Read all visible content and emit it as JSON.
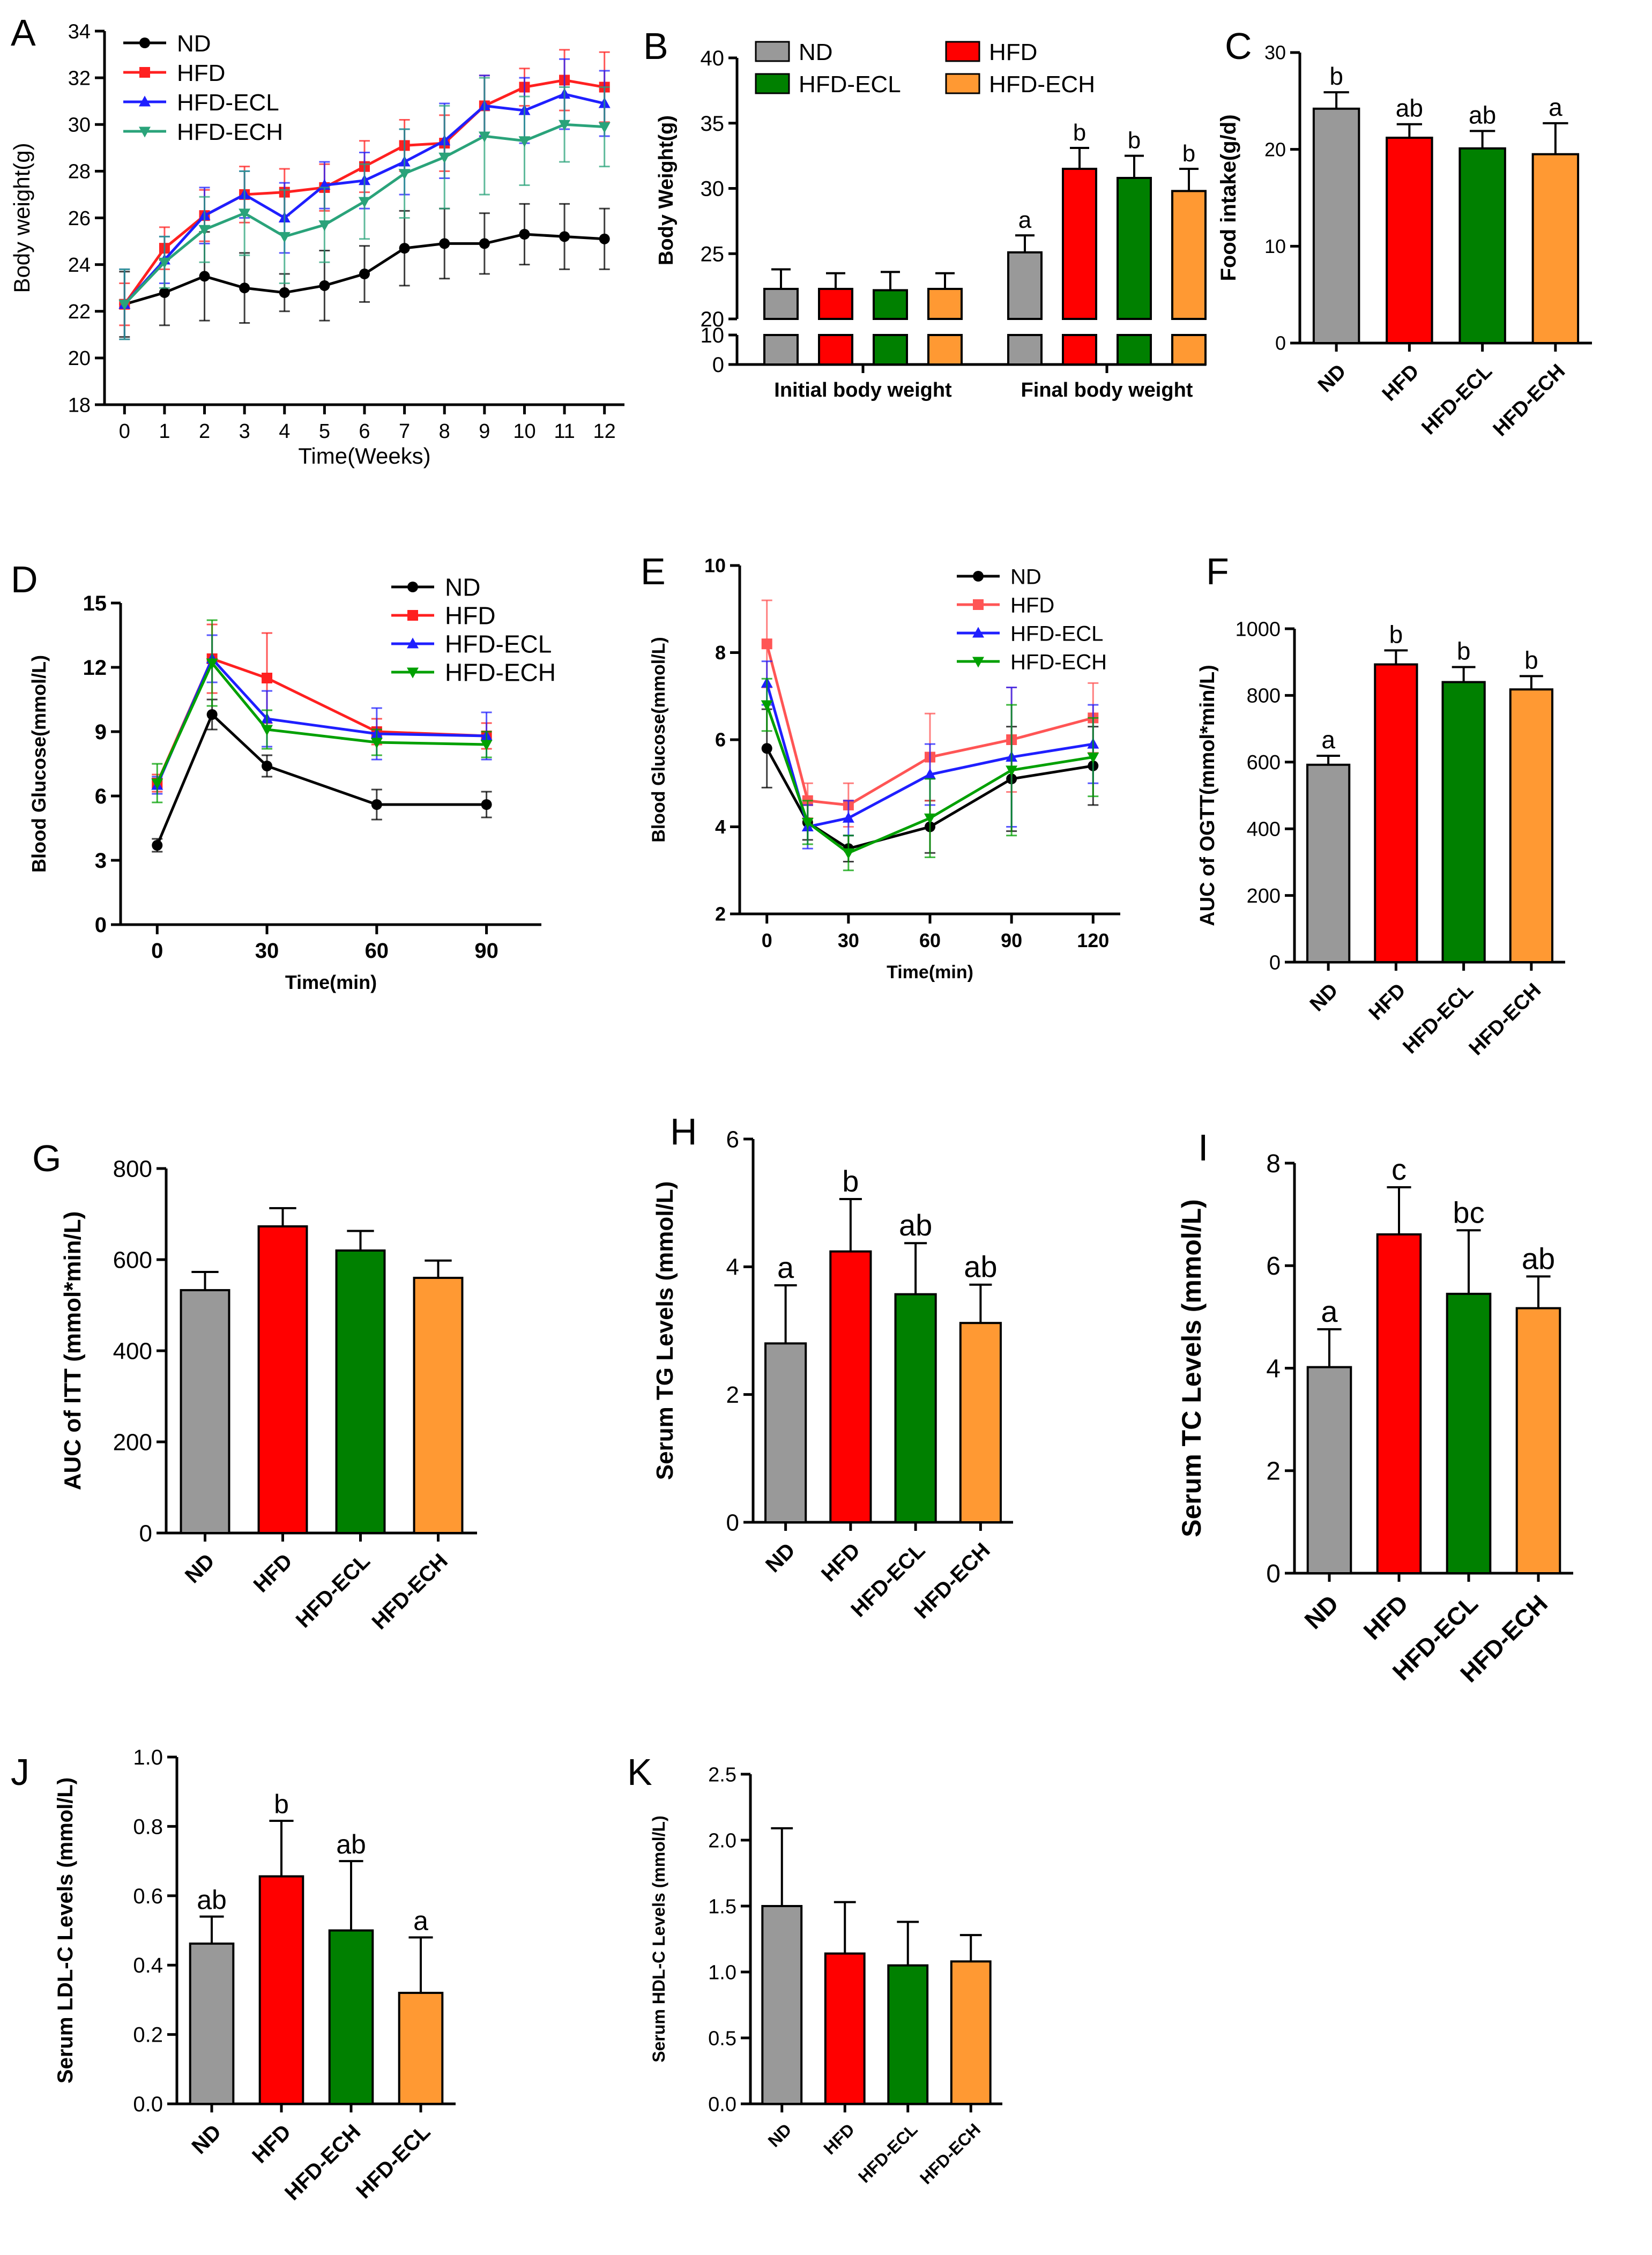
{
  "figure": {
    "description_free": true
  },
  "colors": {
    "ND": "#999999",
    "HFD": "#ff0000",
    "HFD-ECL": "#008000",
    "HFD-ECH": "#ff9933",
    "line_ND": "#000000",
    "line_HFD": "#ff2020",
    "line_HFD_ECL": "#1f1fff",
    "line_HFD_ECH": "#2aa37a",
    "line_E_HFD": "#ff5555",
    "line_D_ECH": "#00a000"
  },
  "chart_data": [
    {
      "id": "A",
      "type": "line",
      "panel_label": "A",
      "xlabel": "Time(Weeks)",
      "ylabel": "Body weight(g)",
      "x": [
        0,
        1,
        2,
        3,
        4,
        5,
        6,
        7,
        8,
        9,
        10,
        11,
        12
      ],
      "xlim": [
        -0.5,
        12.5
      ],
      "ylim": [
        18,
        34
      ],
      "yticks": [
        18,
        20,
        22,
        24,
        26,
        28,
        30,
        32,
        34
      ],
      "series": [
        {
          "name": "ND",
          "color": "#000000",
          "marker": "circle",
          "values": [
            22.3,
            22.8,
            23.5,
            23.0,
            22.8,
            23.1,
            23.6,
            24.7,
            24.9,
            24.9,
            25.3,
            25.2,
            25.1
          ],
          "err": [
            1.4,
            1.4,
            1.9,
            1.5,
            0.8,
            1.5,
            1.2,
            1.6,
            1.5,
            1.3,
            1.3,
            1.4,
            1.3
          ]
        },
        {
          "name": "HFD",
          "color": "#ff2020",
          "marker": "square",
          "values": [
            22.3,
            24.7,
            26.1,
            27.0,
            27.1,
            27.3,
            28.2,
            29.1,
            29.2,
            30.8,
            31.6,
            31.9,
            31.6
          ],
          "err": [
            0.9,
            0.9,
            1.1,
            1.2,
            1.0,
            1.0,
            1.1,
            1.1,
            1.2,
            1.3,
            0.8,
            1.3,
            1.5
          ]
        },
        {
          "name": "HFD-ECL",
          "color": "#1f1fff",
          "marker": "triangle",
          "values": [
            22.3,
            24.2,
            26.1,
            27.0,
            26.0,
            27.4,
            27.6,
            28.4,
            29.3,
            30.8,
            30.6,
            31.3,
            30.9
          ],
          "err": [
            1.5,
            1.0,
            1.2,
            1.0,
            1.5,
            1.0,
            1.2,
            1.4,
            1.6,
            1.3,
            1.4,
            1.5,
            1.4
          ]
        },
        {
          "name": "HFD-ECH",
          "color": "#2aa37a",
          "marker": "triangle-down",
          "values": [
            22.3,
            24.1,
            25.5,
            26.2,
            25.2,
            25.7,
            26.7,
            27.9,
            28.6,
            29.5,
            29.3,
            30.0,
            29.9
          ],
          "err": [
            1.5,
            1.1,
            1.4,
            1.8,
            2.0,
            1.6,
            1.6,
            1.9,
            2.2,
            2.5,
            1.9,
            1.6,
            1.7
          ]
        }
      ]
    },
    {
      "id": "B",
      "type": "bar",
      "panel_label": "B",
      "ylabel": "Body Weight(g)",
      "categories": [
        "Initial body weight",
        "Final body weight"
      ],
      "groups": [
        "ND",
        "HFD-ECL",
        "HFD",
        "HFD-ECH"
      ],
      "legend": [
        "ND",
        "HFD",
        "HFD-ECL",
        "HFD-ECH"
      ],
      "bar_order": [
        "ND",
        "HFD",
        "HFD-ECL",
        "HFD-ECH"
      ],
      "values": {
        "Initial body weight": [
          22.3,
          22.3,
          22.2,
          22.3
        ],
        "Final body weight": [
          25.1,
          31.5,
          30.8,
          29.8
        ]
      },
      "errors": {
        "Initial body weight": [
          1.5,
          1.2,
          1.4,
          1.2
        ],
        "Final body weight": [
          1.3,
          1.6,
          1.7,
          1.7
        ]
      },
      "letters": {
        "Final body weight": [
          "a",
          "b",
          "b",
          "b"
        ]
      },
      "upper_ticks": [
        20,
        25,
        30,
        35,
        40
      ],
      "lower_ticks": [
        0,
        10
      ],
      "ylim_upper": [
        20,
        40
      ],
      "ylim_lower": [
        0,
        10
      ]
    },
    {
      "id": "C",
      "type": "bar",
      "panel_label": "C",
      "ylabel": "Food intake(g/d)",
      "categories": [
        "ND",
        "HFD",
        "HFD-ECL",
        "HFD-ECH"
      ],
      "values": [
        24.2,
        21.2,
        20.1,
        19.5
      ],
      "errors": [
        1.7,
        1.4,
        1.8,
        3.2
      ],
      "letters": [
        "b",
        "ab",
        "ab",
        "a"
      ],
      "ylim": [
        0,
        30
      ],
      "yticks": [
        0,
        10,
        20,
        30
      ]
    },
    {
      "id": "D",
      "type": "line",
      "panel_label": "D",
      "xlabel": "Time(min)",
      "ylabel": "Blood Glucose(mmol/L)",
      "x": [
        0,
        15,
        30,
        60,
        90
      ],
      "xticks": [
        0,
        30,
        60,
        90
      ],
      "xlim": [
        -10,
        105
      ],
      "ylim": [
        0,
        15
      ],
      "yticks": [
        0,
        3,
        6,
        9,
        12,
        15
      ],
      "series": [
        {
          "name": "ND",
          "color": "#000000",
          "marker": "circle",
          "values": [
            3.7,
            9.8,
            7.4,
            5.6,
            5.6
          ],
          "err": [
            0.3,
            0.7,
            0.5,
            0.7,
            0.6
          ]
        },
        {
          "name": "HFD",
          "color": "#ff2020",
          "marker": "square",
          "values": [
            6.6,
            12.4,
            11.5,
            9.0,
            8.8
          ],
          "err": [
            0.4,
            1.6,
            2.1,
            0.6,
            0.6
          ]
        },
        {
          "name": "HFD-ECL",
          "color": "#1f1fff",
          "marker": "triangle",
          "values": [
            6.5,
            12.4,
            9.6,
            8.9,
            8.8
          ],
          "err": [
            0.4,
            1.1,
            1.3,
            1.2,
            1.1
          ]
        },
        {
          "name": "HFD-ECH",
          "color": "#00a000",
          "marker": "triangle-down",
          "values": [
            6.6,
            12.2,
            9.1,
            8.5,
            8.4
          ],
          "err": [
            0.9,
            2.0,
            0.9,
            0.6,
            0.6
          ]
        }
      ]
    },
    {
      "id": "E",
      "type": "line",
      "panel_label": "E",
      "xlabel": "Time(min)",
      "ylabel": "Blood Glucose(mmol/L)",
      "x": [
        0,
        15,
        30,
        60,
        90,
        120
      ],
      "xticks": [
        0,
        30,
        60,
        90,
        120
      ],
      "xlim": [
        -10,
        130
      ],
      "ylim": [
        2,
        10
      ],
      "yticks": [
        2,
        4,
        6,
        8,
        10
      ],
      "series": [
        {
          "name": "ND",
          "color": "#000000",
          "marker": "circle",
          "values": [
            5.8,
            4.1,
            3.5,
            4.0,
            5.1,
            5.4
          ],
          "err": [
            0.9,
            0.4,
            0.3,
            0.6,
            1.2,
            0.9
          ]
        },
        {
          "name": "HFD",
          "color": "#ff5555",
          "marker": "square",
          "values": [
            8.2,
            4.6,
            4.5,
            5.6,
            6.0,
            6.5
          ],
          "err": [
            1.0,
            0.4,
            0.5,
            1.0,
            1.2,
            0.8
          ]
        },
        {
          "name": "HFD-ECL",
          "color": "#1f1fff",
          "marker": "triangle",
          "values": [
            7.3,
            4.0,
            4.2,
            5.2,
            5.6,
            5.9
          ],
          "err": [
            0.5,
            0.5,
            0.4,
            0.7,
            1.6,
            0.9
          ]
        },
        {
          "name": "HFD-ECH",
          "color": "#00a000",
          "marker": "triangle-down",
          "values": [
            6.8,
            4.1,
            3.4,
            4.2,
            5.3,
            5.6
          ],
          "err": [
            0.6,
            0.5,
            0.4,
            0.9,
            1.5,
            0.9
          ]
        }
      ]
    },
    {
      "id": "F",
      "type": "bar",
      "panel_label": "F",
      "ylabel": "AUC of OGTT(mmol*min/L)",
      "categories": [
        "ND",
        "HFD",
        "HFD-ECL",
        "HFD-ECH"
      ],
      "values": [
        592,
        893,
        840,
        818
      ],
      "errors": [
        27,
        42,
        45,
        40
      ],
      "letters": [
        "a",
        "b",
        "b",
        "b"
      ],
      "ylim": [
        0,
        1000
      ],
      "yticks": [
        0,
        200,
        400,
        600,
        800,
        1000
      ]
    },
    {
      "id": "G",
      "type": "bar",
      "panel_label": "G",
      "ylabel": "AUC of ITT (mmol*min/L)",
      "categories": [
        "ND",
        "HFD",
        "HFD-ECL",
        "HFD-ECH"
      ],
      "values": [
        533,
        673,
        620,
        560
      ],
      "errors": [
        40,
        40,
        43,
        38
      ],
      "letters": [],
      "ylim": [
        0,
        800
      ],
      "yticks": [
        0,
        200,
        400,
        600,
        800
      ]
    },
    {
      "id": "H",
      "type": "bar",
      "panel_label": "H",
      "ylabel": "Serum TG Levels (mmol/L)",
      "categories": [
        "ND",
        "HFD",
        "HFD-ECL",
        "HFD-ECH"
      ],
      "values": [
        2.8,
        4.24,
        3.57,
        3.12
      ],
      "errors": [
        0.91,
        0.82,
        0.8,
        0.6
      ],
      "letters": [
        "a",
        "b",
        "ab",
        "ab"
      ],
      "ylim": [
        0,
        6
      ],
      "yticks": [
        0,
        2,
        4,
        6
      ]
    },
    {
      "id": "I",
      "type": "bar",
      "panel_label": "I",
      "ylabel": "Serum TC Levels (mmol/L)",
      "categories": [
        "ND",
        "HFD",
        "HFD-ECL",
        "HFD-ECH"
      ],
      "values": [
        4.02,
        6.61,
        5.45,
        5.17
      ],
      "errors": [
        0.74,
        0.92,
        1.24,
        0.62
      ],
      "letters": [
        "a",
        "c",
        "bc",
        "ab"
      ],
      "ylim": [
        0,
        8
      ],
      "yticks": [
        0,
        2,
        4,
        6,
        8
      ]
    },
    {
      "id": "J",
      "type": "bar",
      "panel_label": "J",
      "ylabel": "Serum LDL-C Levels (mmol/L)",
      "categories": [
        "ND",
        "HFD",
        "HFD-ECH",
        "HFD-ECL"
      ],
      "bar_colors": [
        "#999999",
        "#ff0000",
        "#008000",
        "#ff9933"
      ],
      "values": [
        0.462,
        0.656,
        0.5,
        0.32
      ],
      "errors": [
        0.078,
        0.16,
        0.2,
        0.16
      ],
      "letters": [
        "ab",
        "b",
        "ab",
        "a"
      ],
      "ylim": [
        0,
        1.0
      ],
      "yticks": [
        0.0,
        0.2,
        0.4,
        0.6,
        0.8,
        1.0
      ]
    },
    {
      "id": "K",
      "type": "bar",
      "panel_label": "K",
      "ylabel": "Serum HDL-C Levels (mmol/L)",
      "categories": [
        "ND",
        "HFD",
        "HFD-ECL",
        "HFD-ECH"
      ],
      "values": [
        1.5,
        1.14,
        1.05,
        1.08
      ],
      "errors": [
        0.59,
        0.39,
        0.33,
        0.2
      ],
      "letters": [],
      "ylim": [
        0,
        2.5
      ],
      "yticks": [
        0.0,
        0.5,
        1.0,
        1.5,
        2.0,
        2.5
      ]
    }
  ]
}
